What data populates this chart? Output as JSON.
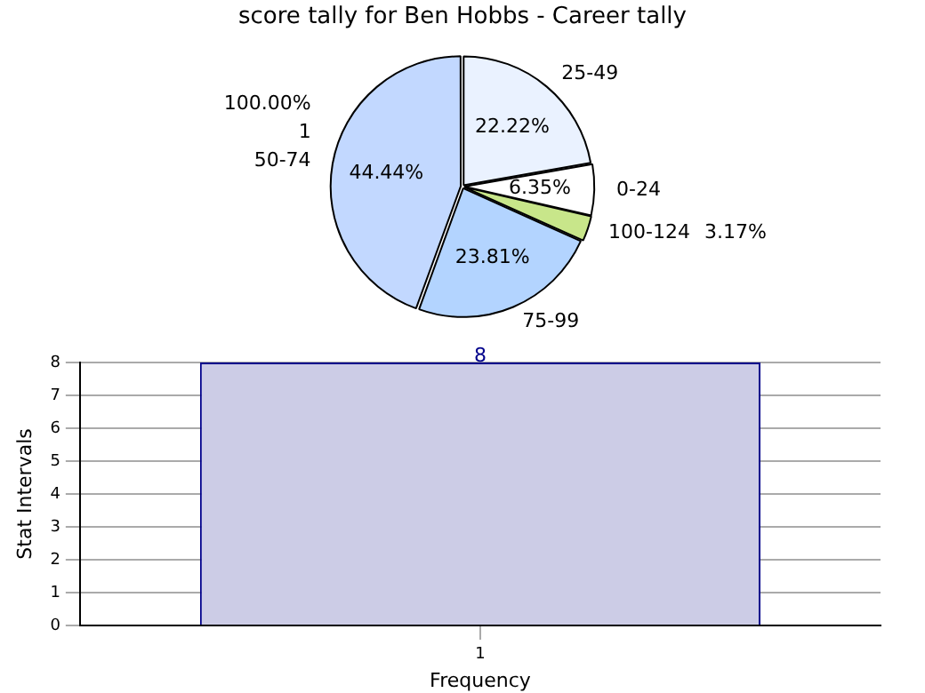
{
  "chart_data": [
    {
      "type": "pie",
      "title": "score tally for Ben Hobbs - Career tally",
      "categories": [
        "25-49",
        "0-24",
        "100-124",
        "75-99",
        "50-74"
      ],
      "values": [
        22.22,
        6.35,
        3.17,
        23.81,
        44.44
      ],
      "value_labels": [
        "22.22%",
        "6.35%",
        "3.17%",
        "23.81%",
        "44.44%"
      ],
      "colors": [
        "#eaf2ff",
        "#ffffff",
        "#c8e68a",
        "#b3d4ff",
        "#c2d8ff"
      ],
      "annotations": [
        "1",
        "100.00%"
      ]
    },
    {
      "type": "bar",
      "categories": [
        "1"
      ],
      "values": [
        8
      ],
      "color": "#ccccE6",
      "xlabel": "Frequency",
      "ylabel": "Stat Intervals",
      "ylim": [
        0,
        8
      ],
      "yticks": [
        0,
        1,
        2,
        3,
        4,
        5,
        6,
        7,
        8
      ],
      "grid": true,
      "data_labels": true
    }
  ]
}
